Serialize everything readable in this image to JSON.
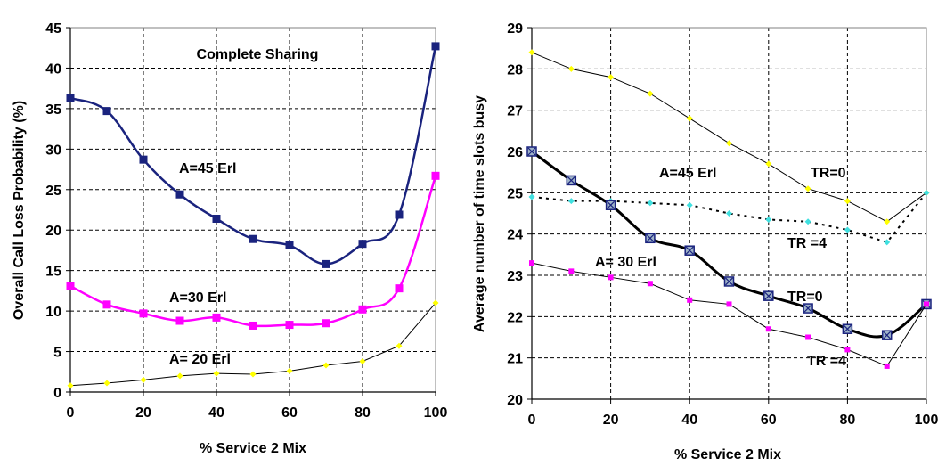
{
  "chart_data": [
    {
      "type": "line",
      "title": "",
      "xlabel": "% Service 2 Mix",
      "ylabel": "Overall Call Loss Probability (%)",
      "xlim": [
        0,
        100
      ],
      "ylim": [
        0,
        45
      ],
      "xticks": [
        0,
        20,
        40,
        60,
        80,
        100
      ],
      "yticks": [
        0,
        5,
        10,
        15,
        20,
        25,
        30,
        35,
        40,
        45
      ],
      "grid": true,
      "legend": "none",
      "annotations": [
        "Complete Sharing"
      ],
      "x": [
        0,
        10,
        20,
        30,
        40,
        50,
        60,
        70,
        80,
        90,
        100
      ],
      "series": [
        {
          "name": "A=45 Erl",
          "color": "#1a237e",
          "marker": "square",
          "smooth": true,
          "values": [
            36.3,
            34.7,
            28.7,
            24.4,
            21.4,
            18.9,
            18.1,
            15.8,
            18.3,
            21.9,
            42.7
          ]
        },
        {
          "name": "A=30 Erl",
          "color": "#ff00ff",
          "marker": "square",
          "smooth": true,
          "values": [
            13.1,
            10.8,
            9.7,
            8.8,
            9.2,
            8.2,
            8.3,
            8.5,
            10.2,
            12.8,
            26.7
          ]
        },
        {
          "name": "A= 20 Erl",
          "color": "#000000",
          "marker": "diamond",
          "marker_color": "#ffff00",
          "smooth": false,
          "values": [
            0.8,
            1.1,
            1.5,
            2.0,
            2.3,
            2.2,
            2.6,
            3.3,
            3.8,
            5.7,
            11.0
          ]
        }
      ]
    },
    {
      "type": "line",
      "title": "",
      "xlabel": "% Service 2 Mix",
      "ylabel": "Average number of time slots busy",
      "xlim": [
        0,
        100
      ],
      "ylim": [
        20,
        29
      ],
      "xticks": [
        0,
        20,
        40,
        60,
        80,
        100
      ],
      "yticks": [
        20,
        21,
        22,
        23,
        24,
        25,
        26,
        27,
        28,
        29
      ],
      "grid": true,
      "legend": "none",
      "annotations": [
        "A=45 Erl",
        "A= 30 Erl"
      ],
      "x": [
        0,
        10,
        20,
        30,
        40,
        50,
        60,
        70,
        80,
        90,
        100
      ],
      "series": [
        {
          "name": "TR=0",
          "color": "#000000",
          "marker": "diamond",
          "marker_color": "#ffff00",
          "smooth": false,
          "label_at": [
            0,
            0
          ],
          "values": [
            28.4,
            28.0,
            27.8,
            27.4,
            26.8,
            26.2,
            25.7,
            25.1,
            24.8,
            24.3,
            25.0
          ]
        },
        {
          "name": "TR =4",
          "color": "#000000",
          "marker": "diamond",
          "marker_color": "#40e0e0",
          "dashed": true,
          "smooth": false,
          "values": [
            24.9,
            24.8,
            24.8,
            24.75,
            24.7,
            24.5,
            24.35,
            24.3,
            24.1,
            23.8,
            25.0
          ]
        },
        {
          "name": "TR=0",
          "color": "#000000",
          "marker": "boxx",
          "marker_color": "#1a237e",
          "width": 3,
          "smooth": true,
          "values": [
            26.0,
            25.3,
            24.7,
            23.9,
            23.6,
            22.85,
            22.5,
            22.2,
            21.7,
            21.55,
            22.3
          ]
        },
        {
          "name": "TR =4",
          "color": "#000000",
          "marker": "square",
          "marker_color": "#ff00ff",
          "smooth": false,
          "values": [
            23.3,
            23.1,
            22.95,
            22.8,
            22.4,
            22.3,
            21.7,
            21.5,
            21.2,
            20.8,
            22.3
          ]
        }
      ]
    }
  ]
}
